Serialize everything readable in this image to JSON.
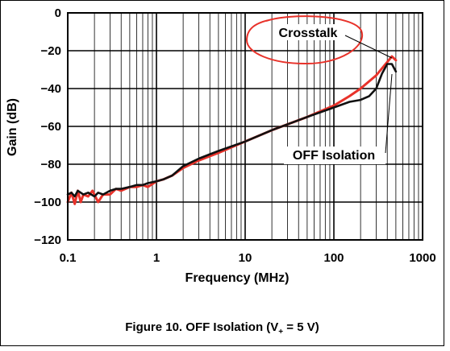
{
  "chart_data": {
    "type": "line",
    "caption": {
      "prefix": "Figure 10. OFF Isolation (V",
      "subscript": "+",
      "suffix": " = 5 V)"
    },
    "xlabel": "Frequency (MHz)",
    "ylabel": "Gain (dB)",
    "xscale": "log",
    "xlim": [
      0.1,
      1000
    ],
    "ylim": [
      -120,
      0
    ],
    "xticks": [
      {
        "value": 0.1,
        "label": "0.1"
      },
      {
        "value": 1,
        "label": "1"
      },
      {
        "value": 10,
        "label": "10"
      },
      {
        "value": 100,
        "label": "100"
      },
      {
        "value": 1000,
        "label": "1000"
      }
    ],
    "yticks": [
      {
        "value": 0,
        "label": "0"
      },
      {
        "value": -20,
        "label": "−20"
      },
      {
        "value": -40,
        "label": "−40"
      },
      {
        "value": -60,
        "label": "−60"
      },
      {
        "value": -80,
        "label": "−80"
      },
      {
        "value": -100,
        "label": "−100"
      },
      {
        "value": -120,
        "label": "−120"
      }
    ],
    "grid": true,
    "series": [
      {
        "name": "Crosstalk",
        "color": "#e8322a",
        "x": [
          0.1,
          0.11,
          0.12,
          0.13,
          0.14,
          0.15,
          0.17,
          0.19,
          0.22,
          0.25,
          0.3,
          0.35,
          0.4,
          0.5,
          0.6,
          0.7,
          0.8,
          1.0,
          1.2,
          1.5,
          2.0,
          3.0,
          5.0,
          10,
          20,
          50,
          100,
          150,
          200,
          300,
          400,
          450,
          500
        ],
        "y": [
          -100,
          -95,
          -101,
          -94,
          -100,
          -96,
          -97,
          -94,
          -100,
          -96,
          -96,
          -93,
          -94,
          -92,
          -92,
          -91,
          -92,
          -89,
          -88,
          -86,
          -82,
          -78,
          -74,
          -68,
          -62,
          -55,
          -49,
          -44,
          -40,
          -33,
          -26,
          -23,
          -25
        ]
      },
      {
        "name": "OFF Isolation",
        "color": "#111111",
        "x": [
          0.1,
          0.11,
          0.12,
          0.13,
          0.15,
          0.17,
          0.2,
          0.22,
          0.25,
          0.3,
          0.35,
          0.4,
          0.5,
          0.6,
          0.7,
          0.8,
          1.0,
          1.2,
          1.5,
          2.0,
          3.0,
          5.0,
          10,
          20,
          50,
          100,
          150,
          200,
          250,
          300,
          350,
          400,
          450,
          500
        ],
        "y": [
          -96,
          -95,
          -97,
          -94,
          -96,
          -95,
          -97,
          -95,
          -96,
          -94,
          -93,
          -93,
          -92,
          -91,
          -91,
          -90,
          -89,
          -88,
          -86,
          -81,
          -77,
          -73,
          -68,
          -62,
          -55,
          -50,
          -47,
          -46,
          -44,
          -40,
          -32,
          -27,
          -27,
          -31
        ]
      }
    ],
    "annotations": [
      {
        "text": "Crosstalk",
        "series": "Crosstalk",
        "x": 400,
        "y": -24
      },
      {
        "text": "OFF Isolation",
        "series": "OFF Isolation",
        "x": 400,
        "y": -30
      }
    ],
    "highlight_circle": {
      "around": "Crosstalk",
      "color": "#e8322a"
    }
  }
}
